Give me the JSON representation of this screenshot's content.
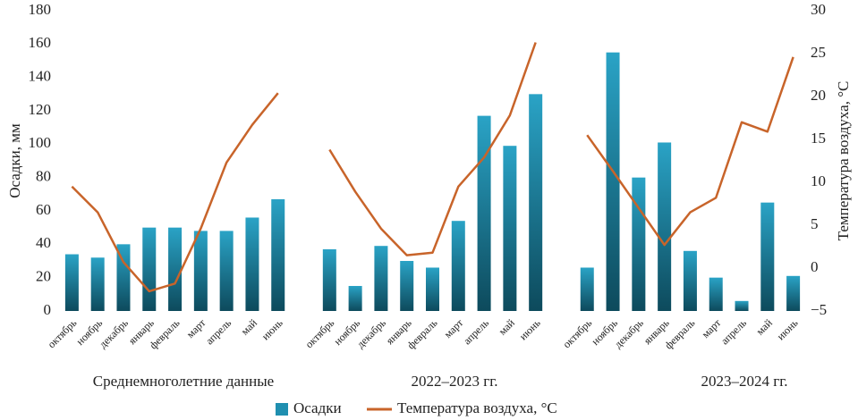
{
  "chart_data": {
    "type": "bar",
    "categories": [
      "октябрь",
      "ноябрь",
      "декабрь",
      "январь",
      "февраль",
      "март",
      "апрель",
      "май",
      "июнь",
      null,
      "октябрь",
      "ноябрь",
      "декабрь",
      "январь",
      "февраль",
      "март",
      "апрель",
      "май",
      "июнь",
      null,
      "октябрь",
      "ноябрь",
      "декабрь",
      "январь",
      "февраль",
      "март",
      "апрель",
      "май",
      "июнь"
    ],
    "group_labels": [
      "Среднемноголетние данные",
      "2022–2023 гг.",
      "2023–2024 гг."
    ],
    "ylabel": "Осадки, мм",
    "y2label": "Температура воздуха, °C",
    "ylim": [
      0,
      180
    ],
    "yticks": [
      0,
      20,
      40,
      60,
      80,
      100,
      120,
      140,
      160,
      180
    ],
    "y2lim": [
      -5,
      30
    ],
    "y2ticks": [
      {
        "value": -5,
        "label": "−5"
      },
      0,
      5,
      10,
      15,
      20,
      25,
      30
    ],
    "series": [
      {
        "name": "Осадки",
        "type": "bar",
        "color": "#1f8fb0",
        "values": [
          34,
          32,
          40,
          50,
          50,
          48,
          48,
          56,
          67,
          null,
          37,
          15,
          39,
          30,
          26,
          54,
          117,
          99,
          130,
          null,
          26,
          155,
          80,
          101,
          36,
          20,
          6,
          65,
          21
        ]
      },
      {
        "name": "Температура воздуха, °C",
        "type": "line",
        "axis": "y2",
        "color": "#c8642a",
        "values": [
          9.5,
          6.5,
          0.7,
          -2.7,
          -1.8,
          4.6,
          12.3,
          16.7,
          20.4,
          null,
          13.8,
          8.9,
          4.6,
          1.5,
          1.8,
          9.5,
          12.9,
          17.8,
          26.3,
          null,
          15.5,
          11.3,
          7,
          2.7,
          6.5,
          8.2,
          17,
          15.9,
          24.6
        ]
      }
    ]
  }
}
